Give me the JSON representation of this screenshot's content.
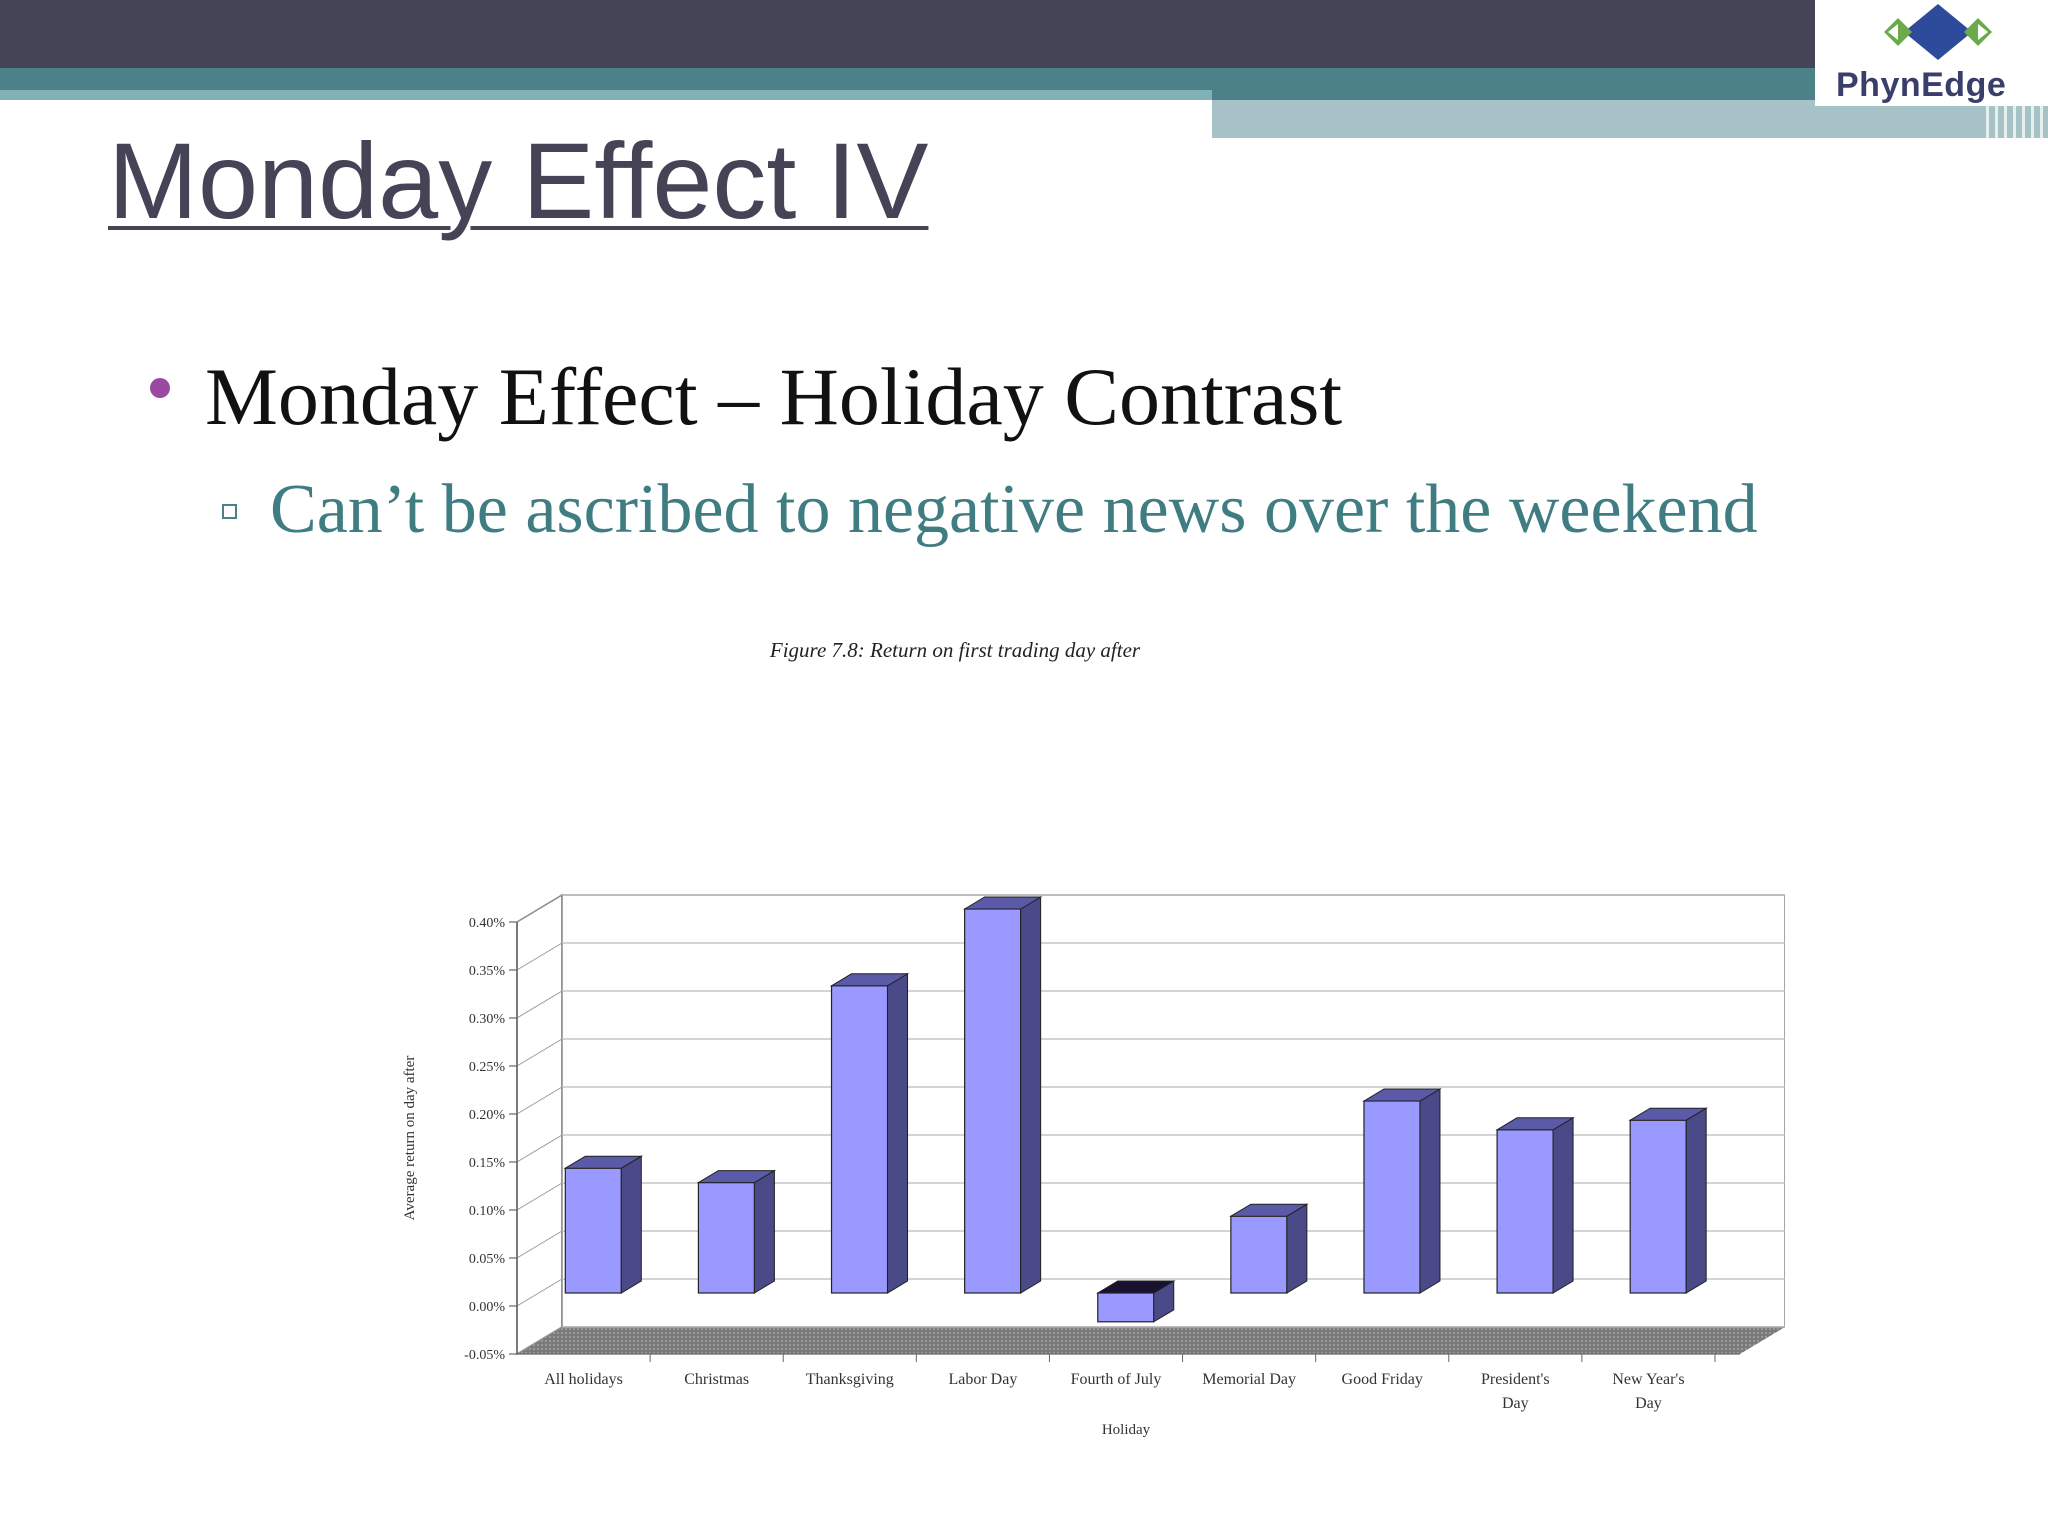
{
  "header": {
    "logo_text": "PhynEdge",
    "colors": {
      "dark": "#454457",
      "teal": "#4b8187",
      "light_teal": "#a7c2c6",
      "logo_blue": "#2e4a9a",
      "logo_green": "#6aaa4a"
    }
  },
  "slide": {
    "title": "Monday Effect IV",
    "bullet1": "Monday Effect – Holiday Contrast",
    "bullet2": "Can’t be ascribed to negative news over the weekend",
    "bullet_color": "#9a4aa3",
    "sub_color": "#3f7d83"
  },
  "chart_data": {
    "type": "bar",
    "title": "Figure 7.8: Return on first trading day after",
    "xlabel": "Holiday",
    "ylabel": "Average return on day after",
    "categories": [
      "All holidays",
      "Christmas",
      "Thanksgiving",
      "Labor Day",
      "Fourth of July",
      "Memorial Day",
      "Good Friday",
      "President's Day",
      "New Year's Day"
    ],
    "category_lines": [
      [
        "All holidays"
      ],
      [
        "Christmas"
      ],
      [
        "Thanksgiving"
      ],
      [
        "Labor Day"
      ],
      [
        "Fourth of July"
      ],
      [
        "Memorial Day"
      ],
      [
        "Good Friday"
      ],
      [
        "President's",
        "Day"
      ],
      [
        "New Year's",
        "Day"
      ]
    ],
    "values": [
      0.13,
      0.115,
      0.32,
      0.4,
      -0.03,
      0.08,
      0.2,
      0.17,
      0.18
    ],
    "yticks": [
      -0.05,
      0.0,
      0.05,
      0.1,
      0.15,
      0.2,
      0.25,
      0.3,
      0.35,
      0.4
    ],
    "ytick_labels": [
      "-0.05%",
      "0.00%",
      "0.05%",
      "0.10%",
      "0.15%",
      "0.20%",
      "0.25%",
      "0.30%",
      "0.35%",
      "0.40%"
    ],
    "ylim": [
      -0.05,
      0.4
    ],
    "grid": true,
    "style": "3d",
    "bar_color": "#9999ff",
    "bar_side_color": "#4a4a88"
  }
}
